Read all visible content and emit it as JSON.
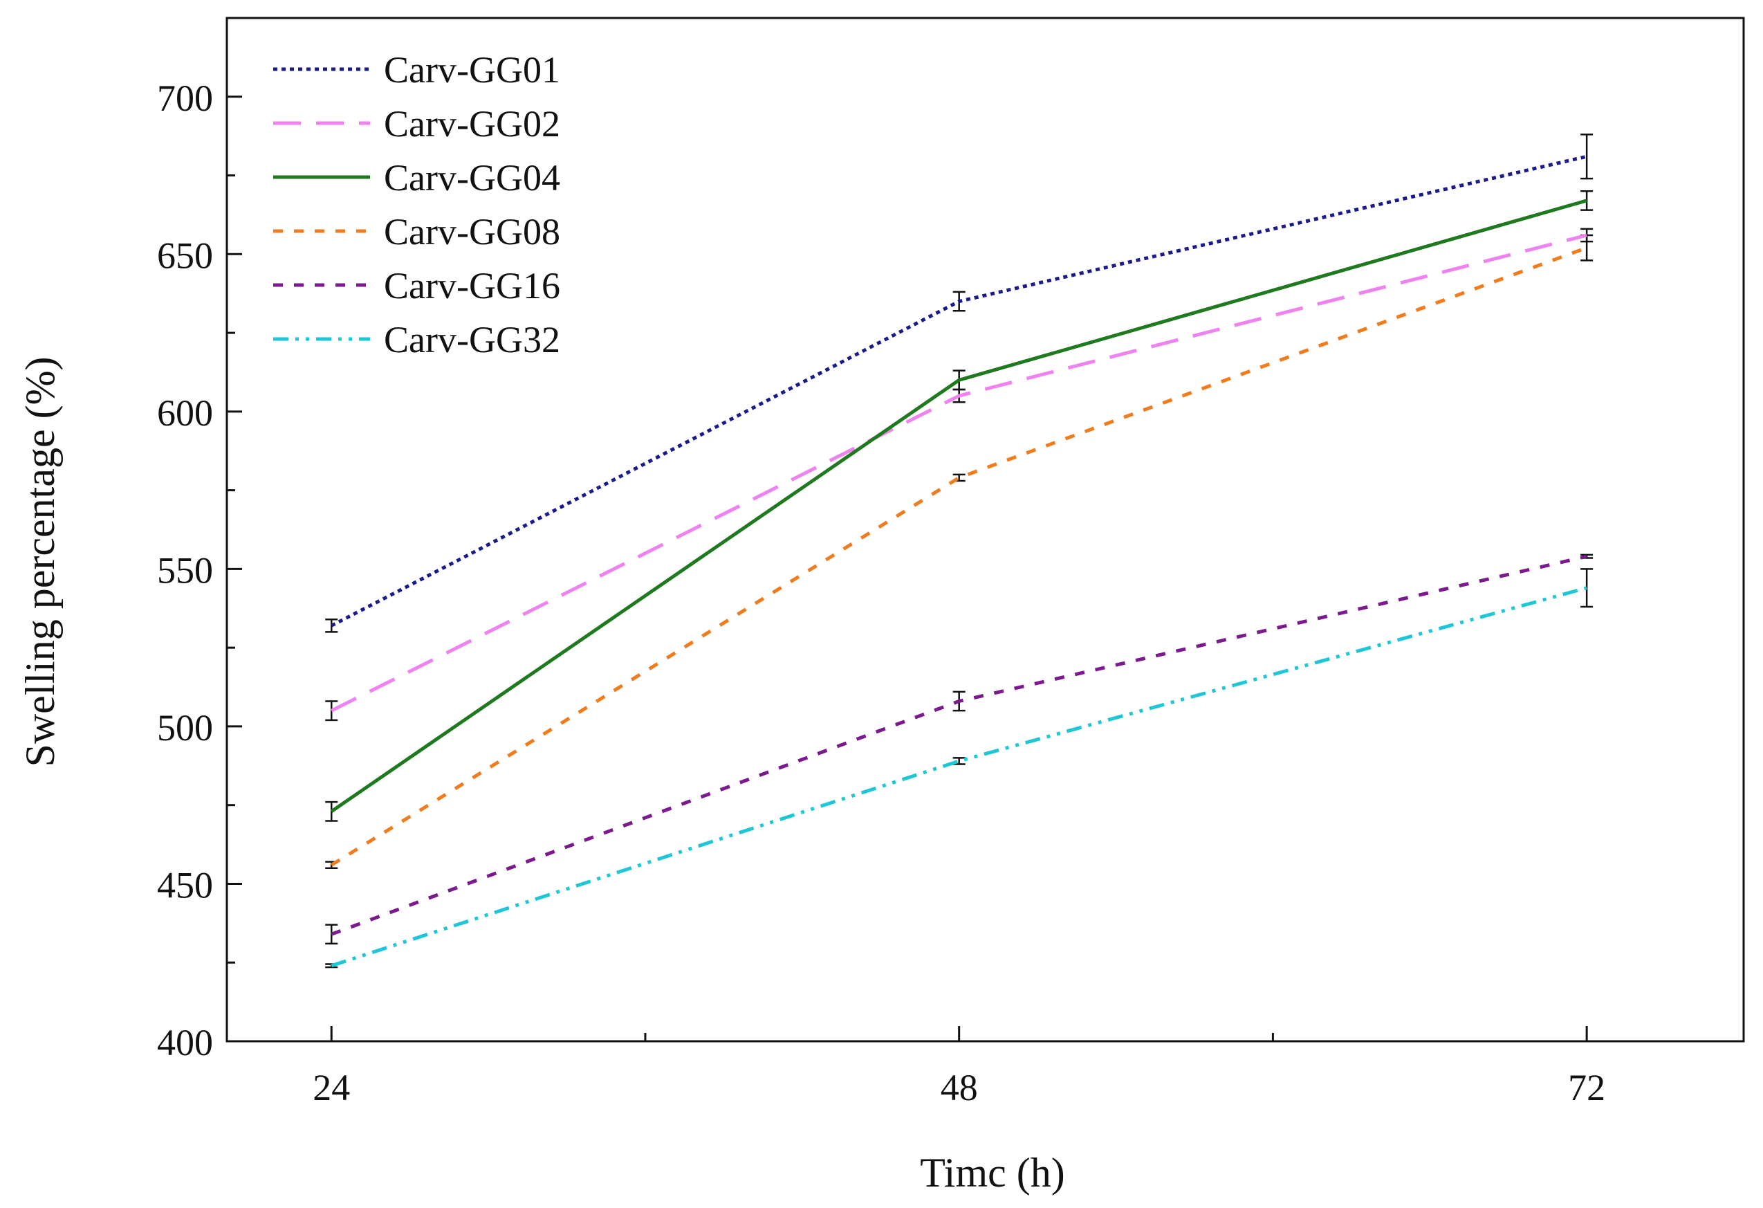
{
  "chart_data": {
    "type": "line",
    "title": "",
    "xlabel": "Timc (h)",
    "ylabel": "Swelling percentage (%)",
    "x": [
      24,
      48,
      72
    ],
    "x_tick_labels": [
      "24",
      "48",
      "72"
    ],
    "y_ticks": [
      400,
      450,
      500,
      550,
      600,
      650,
      700
    ],
    "y_tick_labels": [
      "400",
      "450",
      "500",
      "550",
      "600",
      "650",
      "700"
    ],
    "xlim": [
      20,
      78
    ],
    "ylim": [
      400,
      725
    ],
    "grid": false,
    "legend_position": "top-left",
    "series": [
      {
        "name": "Carv-GG01",
        "values": [
          532,
          635,
          681
        ],
        "errors": [
          2,
          3,
          7
        ],
        "color": "#1a1a8c",
        "dash": "dotted"
      },
      {
        "name": "Carv-GG02",
        "values": [
          505,
          605,
          656
        ],
        "errors": [
          3,
          2,
          2
        ],
        "color": "#ee82ee",
        "dash": "dashed"
      },
      {
        "name": "Carv-GG04",
        "values": [
          473,
          610,
          667
        ],
        "errors": [
          3,
          3,
          3
        ],
        "color": "#1f7a1f",
        "dash": "solid"
      },
      {
        "name": "Carv-GG08",
        "values": [
          456,
          579,
          652
        ],
        "errors": [
          1,
          1,
          4
        ],
        "color": "#f07c1e",
        "dash": "short-dash"
      },
      {
        "name": "Carv-GG16",
        "values": [
          434,
          508,
          554
        ],
        "errors": [
          3,
          3,
          0.5
        ],
        "color": "#7a1a8c",
        "dash": "short-dash"
      },
      {
        "name": "Carv-GG32",
        "values": [
          424,
          489,
          544
        ],
        "errors": [
          0.5,
          1,
          6
        ],
        "color": "#1fc6d6",
        "dash": "dash-dot-dot"
      }
    ]
  }
}
